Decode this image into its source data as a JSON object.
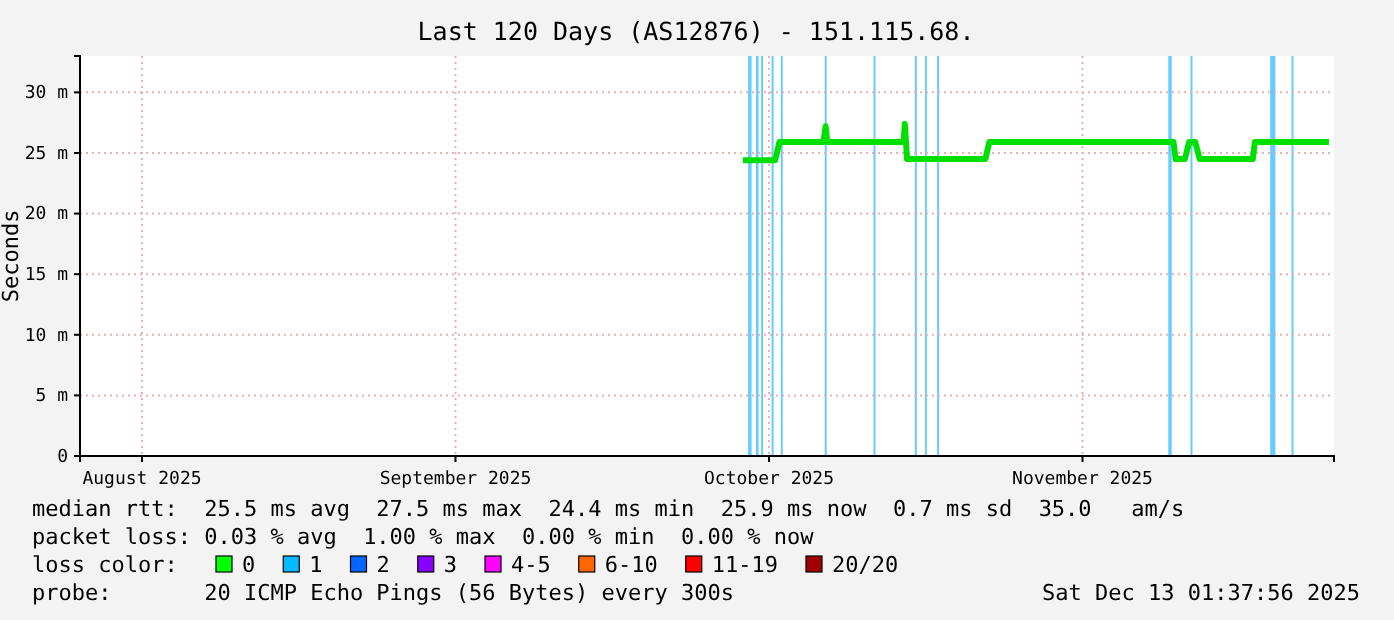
{
  "chart_data": {
    "type": "line",
    "title": "Last 120 Days (AS12876) - 151.115.68.",
    "ylabel": "Seconds",
    "x": [
      "2025-10-17T12:00",
      "2025-10-20T14:00",
      "2025-10-21T00:00",
      "2025-10-25T05:00",
      "2025-10-25T10:00",
      "2025-10-25T14:00",
      "2025-11-01T21:00",
      "2025-11-02T00:00",
      "2025-11-02T05:00",
      "2025-11-09T17:00",
      "2025-11-10T02:00",
      "2025-11-27T17:00",
      "2025-11-27T22:00",
      "2025-11-28T19:00",
      "2025-11-29T05:00",
      "2025-11-29T19:00",
      "2025-11-30T05:00",
      "2025-12-05T07:00",
      "2025-12-05T12:00",
      "2025-12-12T14:00"
    ],
    "series": [
      {
        "color": "#00e000",
        "values": [
          24.4,
          24.4,
          25.9,
          25.9,
          27.2,
          25.9,
          25.9,
          27.4,
          24.5,
          24.5,
          25.9,
          25.9,
          24.5,
          24.5,
          25.9,
          25.9,
          24.5,
          24.5,
          25.9,
          25.9
        ]
      }
    ],
    "xlim": [
      "2025-08-15T01:37",
      "2025-12-13T01:37"
    ],
    "xticks": [
      {
        "value": "2025-08-21",
        "label": "August 2025"
      },
      {
        "value": "2025-09-20",
        "label": "September 2025"
      },
      {
        "value": "2025-10-20",
        "label": "October 2025"
      },
      {
        "value": "2025-11-19",
        "label": "November 2025"
      }
    ],
    "ylim": [
      0,
      33
    ],
    "yticks": [
      0,
      {
        "value": 5,
        "label": "5 m"
      },
      {
        "value": 10,
        "label": "10 m"
      },
      {
        "value": 15,
        "label": "15 m"
      },
      {
        "value": 20,
        "label": "20 m"
      },
      {
        "value": 25,
        "label": "25 m"
      },
      {
        "value": 30,
        "label": "30 m"
      }
    ],
    "bands": [
      {
        "axis": "x",
        "from": "2025-10-18T00:00",
        "to": "2025-10-18T08:00",
        "color": "#66ccff"
      },
      {
        "axis": "x",
        "from": "2025-10-18T18:00",
        "to": "2025-10-19T00:00",
        "color": "#66ccff"
      },
      {
        "axis": "x",
        "from": "2025-10-19T06:00",
        "to": "2025-10-19T10:00",
        "color": "#66ccff"
      },
      {
        "axis": "x",
        "from": "2025-10-20T06:00",
        "to": "2025-10-20T10:00",
        "color": "#66ccff"
      },
      {
        "axis": "x",
        "from": "2025-10-21T03:00",
        "to": "2025-10-21T07:00",
        "color": "#66ccff"
      },
      {
        "axis": "x",
        "from": "2025-10-25T08:00",
        "to": "2025-10-25T12:00",
        "color": "#66ccff"
      },
      {
        "axis": "x",
        "from": "2025-10-30T00:00",
        "to": "2025-10-30T04:00",
        "color": "#66ccff"
      },
      {
        "axis": "x",
        "from": "2025-11-02T23:00",
        "to": "2025-11-03T03:00",
        "color": "#66ccff"
      },
      {
        "axis": "x",
        "from": "2025-11-03T22:00",
        "to": "2025-11-04T02:00",
        "color": "#66ccff"
      },
      {
        "axis": "x",
        "from": "2025-11-05T02:00",
        "to": "2025-11-05T06:00",
        "color": "#66ccff"
      },
      {
        "axis": "x",
        "from": "2025-11-27T05:00",
        "to": "2025-11-27T13:00",
        "color": "#66ccff"
      },
      {
        "axis": "x",
        "from": "2025-11-29T08:00",
        "to": "2025-11-29T12:00",
        "color": "#66ccff"
      },
      {
        "axis": "x",
        "from": "2025-12-06T23:00",
        "to": "2025-12-07T11:00",
        "color": "#66ccff"
      },
      {
        "axis": "x",
        "from": "2025-12-09T00:00",
        "to": "2025-12-09T04:00",
        "color": "#66ccff"
      }
    ],
    "grid": true,
    "annotations": [
      "median rtt:  25.5 ms avg  27.5 ms max  24.4 ms min  25.9 ms now  0.7 ms sd  35.0   am/s",
      "packet loss: 0.03 % avg  1.00 % max  0.00 % min  0.00 % now",
      "loss color:",
      "0",
      "1",
      "2",
      "3",
      "4-5",
      "6-10",
      "11-19",
      "20/20",
      "probe:       20 ICMP Echo Pings (56 Bytes) every 300s",
      "Sat Dec 13 01:37:56 2025"
    ]
  }
}
